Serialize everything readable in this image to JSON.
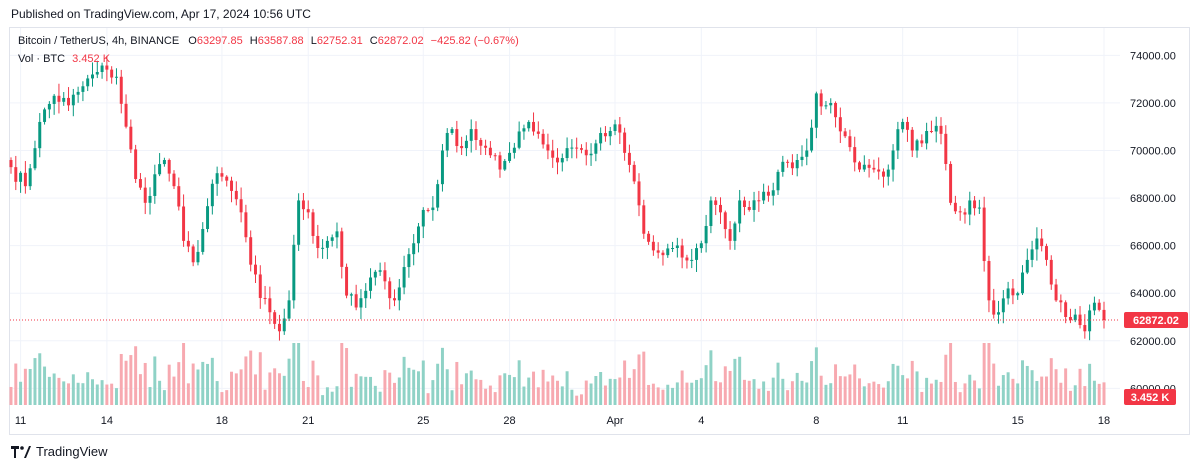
{
  "header": {
    "published": "Published on TradingView.com, Apr 17, 2024 10:56 UTC"
  },
  "legend": {
    "symbol": "Bitcoin / TetherUS, 4h, BINANCE",
    "o_label": "O",
    "o_value": "63297.85",
    "h_label": "H",
    "h_value": "63587.88",
    "l_label": "L",
    "l_value": "62752.31",
    "c_label": "C",
    "c_value": "62872.02",
    "change": "−425.82 (−0.67%)",
    "vol_label": "Vol · BTC",
    "vol_value": "3.452 K"
  },
  "footer": {
    "brand": "TradingView"
  },
  "colors": {
    "up": "#089981",
    "down": "#f23645",
    "up_vol": "#8fd2c6",
    "down_vol": "#f7a9b0",
    "grid": "#f0f3fa"
  },
  "chart_data": {
    "type": "candlestick",
    "symbol": "BTCUSDT",
    "timeframe": "4h",
    "x_ticks": [
      {
        "label": "11",
        "bar": 2
      },
      {
        "label": "14",
        "bar": 20
      },
      {
        "label": "18",
        "bar": 44
      },
      {
        "label": "21",
        "bar": 62
      },
      {
        "label": "25",
        "bar": 86
      },
      {
        "label": "28",
        "bar": 104
      },
      {
        "label": "Apr",
        "bar": 126
      },
      {
        "label": "4",
        "bar": 144
      },
      {
        "label": "8",
        "bar": 168
      },
      {
        "label": "11",
        "bar": 186
      },
      {
        "label": "15",
        "bar": 210
      },
      {
        "label": "18",
        "bar": 228
      }
    ],
    "y_ticks": [
      "74000.00",
      "72000.00",
      "70000.00",
      "68000.00",
      "66000.00",
      "64000.00",
      "62000.00",
      "60000.00"
    ],
    "y_values": [
      74000,
      72000,
      70000,
      68000,
      66000,
      64000,
      62000,
      60000
    ],
    "ylim": [
      59300,
      75150
    ],
    "last_price": 62872.02,
    "last_price_label": "62872.02",
    "last_volume_label": "3.452 K",
    "close_anchors": [
      [
        0,
        69300
      ],
      [
        3,
        68500
      ],
      [
        6,
        71200
      ],
      [
        9,
        72300
      ],
      [
        12,
        71900
      ],
      [
        15,
        72700
      ],
      [
        18,
        73300
      ],
      [
        20,
        73400
      ],
      [
        22,
        73100
      ],
      [
        24,
        71000
      ],
      [
        26,
        68800
      ],
      [
        28,
        67800
      ],
      [
        30,
        69000
      ],
      [
        32,
        69600
      ],
      [
        34,
        68500
      ],
      [
        36,
        66200
      ],
      [
        38,
        65300
      ],
      [
        40,
        66700
      ],
      [
        42,
        68600
      ],
      [
        44,
        68900
      ],
      [
        46,
        68300
      ],
      [
        48,
        67400
      ],
      [
        50,
        65200
      ],
      [
        52,
        63800
      ],
      [
        54,
        63200
      ],
      [
        56,
        62400
      ],
      [
        58,
        63700
      ],
      [
        60,
        67900
      ],
      [
        62,
        67400
      ],
      [
        64,
        65900
      ],
      [
        66,
        66200
      ],
      [
        68,
        66600
      ],
      [
        70,
        63900
      ],
      [
        72,
        63400
      ],
      [
        74,
        64100
      ],
      [
        76,
        64900
      ],
      [
        78,
        64500
      ],
      [
        80,
        63700
      ],
      [
        82,
        65100
      ],
      [
        84,
        66100
      ],
      [
        86,
        67500
      ],
      [
        88,
        67600
      ],
      [
        90,
        70000
      ],
      [
        92,
        70900
      ],
      [
        94,
        70100
      ],
      [
        96,
        70900
      ],
      [
        98,
        70200
      ],
      [
        100,
        69800
      ],
      [
        102,
        69200
      ],
      [
        104,
        69900
      ],
      [
        106,
        70800
      ],
      [
        108,
        71200
      ],
      [
        110,
        70700
      ],
      [
        112,
        70000
      ],
      [
        114,
        69500
      ],
      [
        116,
        70100
      ],
      [
        118,
        70100
      ],
      [
        120,
        69800
      ],
      [
        122,
        70300
      ],
      [
        124,
        70600
      ],
      [
        126,
        71100
      ],
      [
        128,
        69900
      ],
      [
        130,
        68700
      ],
      [
        132,
        66500
      ],
      [
        134,
        65800
      ],
      [
        136,
        65600
      ],
      [
        138,
        65900
      ],
      [
        140,
        65500
      ],
      [
        142,
        65400
      ],
      [
        144,
        66100
      ],
      [
        146,
        67900
      ],
      [
        148,
        67400
      ],
      [
        150,
        66200
      ],
      [
        152,
        67900
      ],
      [
        154,
        67500
      ],
      [
        156,
        67900
      ],
      [
        158,
        68100
      ],
      [
        160,
        69100
      ],
      [
        162,
        69500
      ],
      [
        164,
        69600
      ],
      [
        166,
        70000
      ],
      [
        168,
        72400
      ],
      [
        170,
        71900
      ],
      [
        172,
        71400
      ],
      [
        174,
        70600
      ],
      [
        176,
        69500
      ],
      [
        178,
        69400
      ],
      [
        180,
        69200
      ],
      [
        182,
        68900
      ],
      [
        184,
        70000
      ],
      [
        186,
        71200
      ],
      [
        188,
        70000
      ],
      [
        190,
        70300
      ],
      [
        192,
        70800
      ],
      [
        194,
        70700
      ],
      [
        196,
        67800
      ],
      [
        198,
        67400
      ],
      [
        200,
        67900
      ],
      [
        202,
        67600
      ],
      [
        204,
        63700
      ],
      [
        206,
        63200
      ],
      [
        208,
        64200
      ],
      [
        210,
        64000
      ],
      [
        212,
        65400
      ],
      [
        214,
        66300
      ],
      [
        216,
        65400
      ],
      [
        218,
        63700
      ],
      [
        220,
        63000
      ],
      [
        222,
        63100
      ],
      [
        224,
        62400
      ],
      [
        226,
        63600
      ],
      [
        227,
        63298
      ],
      [
        228,
        62872
      ]
    ]
  }
}
